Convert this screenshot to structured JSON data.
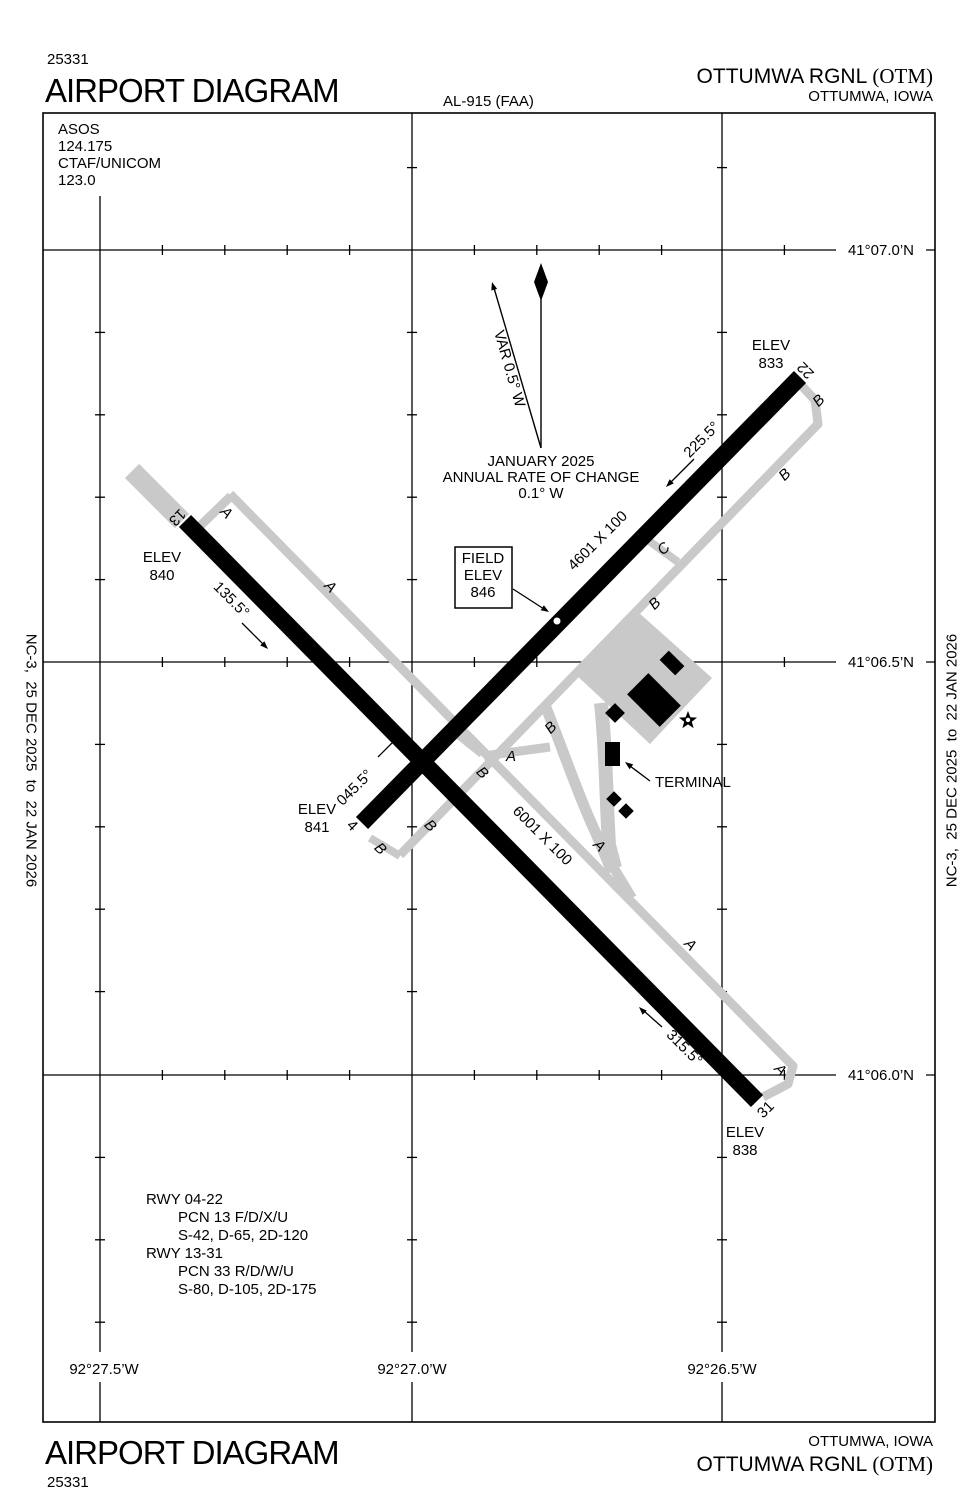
{
  "header": {
    "page_code": "25331",
    "title": "AIRPORT DIAGRAM",
    "al_number": "AL-915 (FAA)",
    "airport_name": "OTTUMWA RGNL",
    "airport_code": "(OTM)",
    "city": "OTTUMWA, IOWA"
  },
  "footer": {
    "title": "AIRPORT DIAGRAM",
    "page_code": "25331",
    "airport_name": "OTTUMWA RGNL",
    "airport_code": "(OTM)",
    "city": "OTTUMWA, IOWA"
  },
  "margin_note": "NC-3,  25 DEC 2025  to  22 JAN 2026",
  "comms": {
    "lines": [
      "ASOS",
      "124.175",
      "CTAF/UNICOM",
      "123.0"
    ]
  },
  "grid": {
    "latitudes": [
      "41°07.0’N",
      "41°06.5’N",
      "41°06.0’N"
    ],
    "longitudes": [
      "92°27.5’W",
      "92°27.0’W",
      "92°26.5’W"
    ]
  },
  "magnetic": {
    "var_label": "VAR 0.5° W",
    "date": "JANUARY 2025",
    "rate1": "ANNUAL RATE OF CHANGE",
    "rate2": "0.1° W"
  },
  "field_elev": {
    "label1": "FIELD",
    "label2": "ELEV",
    "value": "846"
  },
  "elev_label": "ELEV",
  "runways": {
    "rwy0422": {
      "dim": "4601 X 100",
      "end22": {
        "number": "22",
        "elev": "833",
        "heading": "225.5°"
      },
      "end04": {
        "number": "4",
        "elev": "841",
        "heading": "045.5°"
      }
    },
    "rwy1331": {
      "dim": "6001 X 100",
      "end13": {
        "number": "13",
        "elev": "840",
        "heading": "135.5°"
      },
      "end31": {
        "number": "31",
        "elev": "838",
        "heading": "315.5°"
      }
    }
  },
  "taxiways": {
    "a": "A",
    "b": "B",
    "c": "C"
  },
  "terminal_label": "TERMINAL",
  "runway_data": {
    "lines": [
      "RWY 04-22",
      "PCN 13 F/D/X/U",
      "S-42, D-65, 2D-120",
      "RWY 13-31",
      "PCN 33 R/D/W/U",
      "S-80, D-105, 2D-175"
    ]
  },
  "colors": {
    "runway": "#000000",
    "taxiway": "#c9c9c9",
    "ink": "#000000",
    "paper": "#ffffff"
  }
}
